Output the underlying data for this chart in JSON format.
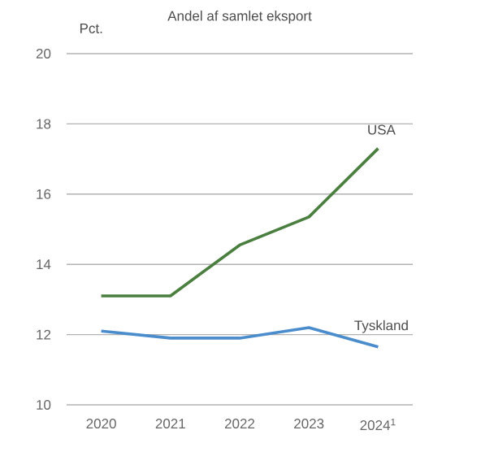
{
  "chart_data": {
    "type": "line",
    "title": "Andel af samlet eksport",
    "ylabel": "Pct.",
    "categories": [
      "2020",
      "2021",
      "2022",
      "2023",
      "2024$^{1}$"
    ],
    "series": [
      {
        "name": "USA",
        "color": "#4a7f3f",
        "values": [
          13.1,
          13.1,
          14.55,
          15.35,
          17.3
        ]
      },
      {
        "name": "Tyskland",
        "color": "#4a8ccc",
        "values": [
          12.1,
          11.9,
          11.9,
          12.2,
          11.65
        ]
      }
    ],
    "ylim": [
      10,
      20
    ],
    "yticks": [
      10,
      12,
      14,
      16,
      18,
      20
    ],
    "grid": "y",
    "legend": false,
    "marker": "none",
    "line_style": "solid"
  }
}
